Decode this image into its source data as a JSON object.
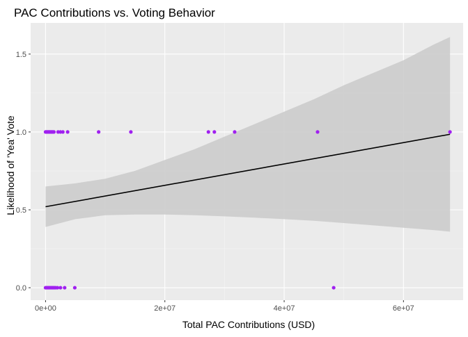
{
  "chart_data": {
    "type": "scatter",
    "title": "PAC Contributions vs. Voting Behavior",
    "xlabel": "Total PAC Contributions (USD)",
    "ylabel": "Likelihood of 'Yea' Vote",
    "xlim": [
      -2500000,
      70000000
    ],
    "ylim": [
      -0.08,
      1.7
    ],
    "x_ticks": [
      0,
      20000000,
      40000000,
      60000000
    ],
    "x_tick_labels": [
      "0e+00",
      "2e+07",
      "4e+07",
      "6e+07"
    ],
    "y_ticks": [
      0.0,
      0.5,
      1.0,
      1.5
    ],
    "y_tick_labels": [
      "0.0",
      "0.5",
      "1.0",
      "1.5"
    ],
    "grid": true,
    "point_color": "#a020f0",
    "fit_line_color": "#000000",
    "band_color": "#cccccc",
    "panel_background": "#ebebeb",
    "points": [
      {
        "x": 0,
        "y": 1
      },
      {
        "x": 150000,
        "y": 1
      },
      {
        "x": 300000,
        "y": 1
      },
      {
        "x": 450000,
        "y": 1
      },
      {
        "x": 600000,
        "y": 1
      },
      {
        "x": 750000,
        "y": 1
      },
      {
        "x": 900000,
        "y": 1
      },
      {
        "x": 1050000,
        "y": 1
      },
      {
        "x": 1200000,
        "y": 1
      },
      {
        "x": 1400000,
        "y": 1
      },
      {
        "x": 2100000,
        "y": 1
      },
      {
        "x": 2500000,
        "y": 1
      },
      {
        "x": 2900000,
        "y": 1
      },
      {
        "x": 3700000,
        "y": 1
      },
      {
        "x": 8900000,
        "y": 1
      },
      {
        "x": 14300000,
        "y": 1
      },
      {
        "x": 27300000,
        "y": 1
      },
      {
        "x": 28300000,
        "y": 1
      },
      {
        "x": 31700000,
        "y": 1
      },
      {
        "x": 45600000,
        "y": 1
      },
      {
        "x": 67800000,
        "y": 1
      },
      {
        "x": 0,
        "y": 0
      },
      {
        "x": 150000,
        "y": 0
      },
      {
        "x": 300000,
        "y": 0
      },
      {
        "x": 450000,
        "y": 0
      },
      {
        "x": 600000,
        "y": 0
      },
      {
        "x": 750000,
        "y": 0
      },
      {
        "x": 900000,
        "y": 0
      },
      {
        "x": 1050000,
        "y": 0
      },
      {
        "x": 1200000,
        "y": 0
      },
      {
        "x": 1350000,
        "y": 0
      },
      {
        "x": 1500000,
        "y": 0
      },
      {
        "x": 1700000,
        "y": 0
      },
      {
        "x": 2000000,
        "y": 0
      },
      {
        "x": 2500000,
        "y": 0
      },
      {
        "x": 3200000,
        "y": 0
      },
      {
        "x": 4900000,
        "y": 0
      },
      {
        "x": 48300000,
        "y": 0
      }
    ],
    "fit_line": {
      "x": [
        0,
        67800000
      ],
      "y": [
        0.52,
        0.985
      ]
    },
    "confidence_band": {
      "x": [
        0,
        5000000,
        10000000,
        15000000,
        20000000,
        25000000,
        30000000,
        35000000,
        40000000,
        45000000,
        50000000,
        55000000,
        60000000,
        65000000,
        67800000
      ],
      "lower": [
        0.39,
        0.44,
        0.465,
        0.47,
        0.47,
        0.465,
        0.458,
        0.45,
        0.44,
        0.43,
        0.415,
        0.4,
        0.385,
        0.37,
        0.36
      ],
      "upper": [
        0.65,
        0.67,
        0.7,
        0.75,
        0.82,
        0.89,
        0.97,
        1.05,
        1.13,
        1.21,
        1.3,
        1.38,
        1.46,
        1.56,
        1.61
      ]
    }
  }
}
